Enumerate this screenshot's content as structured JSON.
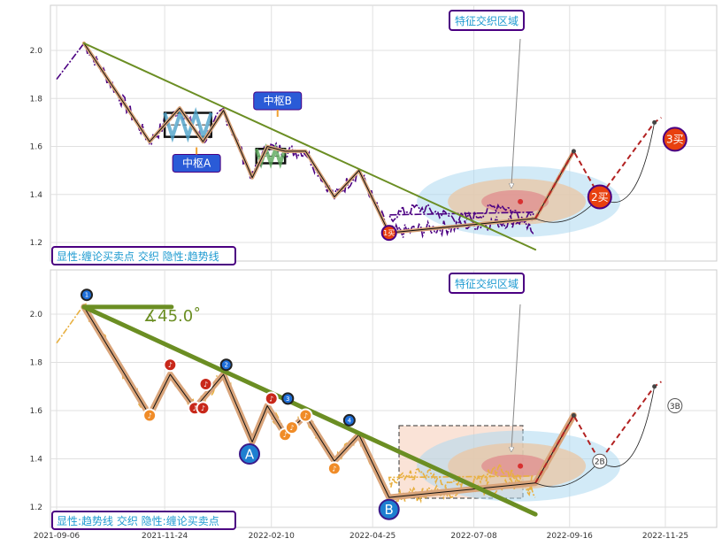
{
  "chart_data": [
    {
      "type": "line",
      "panel": "top",
      "ylim": [
        1.12,
        2.18
      ],
      "xlim": [
        "2021-08-29",
        "2022-12-20"
      ],
      "y_ticks": [
        "1.2",
        "1.4",
        "1.6",
        "1.8",
        "2.0"
      ],
      "grid": true,
      "legend_text": "显性:缠论买卖点 交织 隐性:趋势线",
      "feature_region_label": "特征交织区域",
      "zhongshu": [
        {
          "label": "中枢A",
          "start": "2021-11-24",
          "end": "2021-12-28",
          "low": 1.64,
          "high": 1.74
        },
        {
          "label": "中枢B",
          "start": "2022-01-30",
          "end": "2022-02-20",
          "low": 1.53,
          "high": 1.59
        }
      ],
      "trend_line": {
        "start": [
          "2021-09-26",
          2.03
        ],
        "end": [
          "2022-08-22",
          1.17
        ]
      },
      "strokes": {
        "x": [
          "2021-09-26",
          "2021-11-13",
          "2021-12-05",
          "2021-12-22",
          "2022-01-06",
          "2022-01-27",
          "2022-02-07",
          "2022-02-20",
          "2022-03-07",
          "2022-03-28",
          "2022-04-15",
          "2022-05-07",
          "2022-08-22",
          "2022-09-19"
        ],
        "y": [
          2.03,
          1.62,
          1.76,
          1.62,
          1.75,
          1.47,
          1.6,
          1.58,
          1.58,
          1.39,
          1.5,
          1.24,
          1.3,
          1.58
        ]
      },
      "buy_sell_points": [
        {
          "label": "1买",
          "x": "2022-05-07",
          "y": 1.24
        },
        {
          "label": "2买",
          "x": "2022-10-08",
          "y": 1.39
        },
        {
          "label": "3买",
          "x": "2022-12-02",
          "y": 1.63
        }
      ],
      "projection": {
        "x": [
          "2022-08-22",
          "2022-09-19",
          "2022-10-08",
          "2022-11-17",
          "2022-11-22"
        ],
        "y": [
          1.3,
          1.58,
          1.39,
          1.7,
          1.72
        ]
      },
      "target_point": {
        "x": "2022-08-11",
        "y": 1.37
      }
    },
    {
      "type": "line",
      "panel": "bottom",
      "ylim": [
        1.12,
        2.18
      ],
      "xlim": [
        "2021-08-29",
        "2022-12-20"
      ],
      "x_ticks": [
        "2021-09-06",
        "2021-11-24",
        "2022-02-10",
        "2022-04-25",
        "2022-07-08",
        "2022-09-16",
        "2022-11-25"
      ],
      "y_ticks": [
        "1.2",
        "1.4",
        "1.6",
        "1.8",
        "2.0"
      ],
      "grid": true,
      "legend_text": "显性:趋势线 交织 隐性:缠论买卖点",
      "feature_region_label": "特征交织区域",
      "angle_label": "∡45.0˚",
      "trend_line": {
        "start": [
          "2021-09-26",
          2.03
        ],
        "end": [
          "2022-08-22",
          1.17
        ]
      },
      "horizontal_line": {
        "start": [
          "2021-09-26",
          2.03
        ],
        "end": [
          "2021-11-29",
          2.03
        ]
      },
      "strokes": {
        "x": [
          "2021-09-26",
          "2021-11-13",
          "2021-11-28",
          "2021-12-16",
          "2021-12-22",
          "2022-01-06",
          "2022-01-27",
          "2022-02-07",
          "2022-02-20",
          "2022-03-07",
          "2022-03-28",
          "2022-04-15",
          "2022-05-07",
          "2022-08-22",
          "2022-09-19"
        ],
        "y": [
          2.03,
          1.58,
          1.75,
          1.61,
          1.65,
          1.75,
          1.47,
          1.62,
          1.5,
          1.58,
          1.39,
          1.5,
          1.24,
          1.3,
          1.58
        ]
      },
      "numbered_markers": [
        {
          "label": "1",
          "x": "2021-09-28",
          "y": 2.08
        },
        {
          "label": "2",
          "x": "2022-01-08",
          "y": 1.79
        },
        {
          "label": "3",
          "x": "2022-02-22",
          "y": 1.65
        },
        {
          "label": "4",
          "x": "2022-04-08",
          "y": 1.56
        }
      ],
      "wave_labels": [
        {
          "label": "A",
          "x": "2022-01-25",
          "y": 1.42
        },
        {
          "label": "B",
          "x": "2022-05-07",
          "y": 1.19
        }
      ],
      "music_markers": [
        {
          "x": "2021-11-13",
          "y": 1.58
        },
        {
          "x": "2021-11-28",
          "y": 1.79
        },
        {
          "x": "2021-12-16",
          "y": 1.61
        },
        {
          "x": "2021-12-22",
          "y": 1.61
        },
        {
          "x": "2021-12-24",
          "y": 1.71
        },
        {
          "x": "2022-02-10",
          "y": 1.65
        },
        {
          "x": "2022-02-20",
          "y": 1.5
        },
        {
          "x": "2022-02-25",
          "y": 1.53
        },
        {
          "x": "2022-03-07",
          "y": 1.58
        },
        {
          "x": "2022-03-28",
          "y": 1.36
        }
      ],
      "projection_labels": [
        {
          "label": "2B",
          "x": "2022-10-08",
          "y": 1.39
        },
        {
          "label": "3B",
          "x": "2022-12-02",
          "y": 1.62
        }
      ],
      "projection": {
        "x": [
          "2022-08-22",
          "2022-09-19",
          "2022-10-08",
          "2022-11-17",
          "2022-11-22"
        ],
        "y": [
          1.3,
          1.58,
          1.39,
          1.7,
          1.72
        ]
      },
      "target_point": {
        "x": "2022-08-11",
        "y": 1.37
      }
    }
  ],
  "colors": {
    "trend_line": "#6b8e23",
    "price_top": "#4b0082",
    "price_bottom": "#e8b040",
    "stroke_fill": "#d9a47a",
    "buy_marker": "#e8400f",
    "blue_marker": "#1e6fd9",
    "label_box": "#2a5bd7",
    "legend_border": "#4b0082",
    "legend_text": "#1f9bd1",
    "region_text": "#1f9bd1",
    "projection": "#b22222",
    "ellipse_outer": "#add8f0",
    "ellipse_mid": "#e8c8a8",
    "ellipse_inner": "#e09090"
  }
}
